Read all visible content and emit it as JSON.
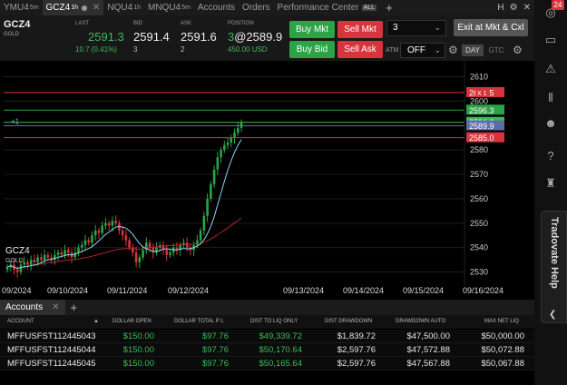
{
  "tabs": [
    {
      "label": "YMU4",
      "sup": "5m",
      "active": false
    },
    {
      "label": "GCZ4",
      "sup": "1h",
      "active": true
    },
    {
      "label": "NQU4",
      "sup": "1h",
      "active": false
    },
    {
      "label": "MNQU4",
      "sup": "5m",
      "active": false
    },
    {
      "label": "Accounts",
      "sup": "",
      "active": false
    },
    {
      "label": "Orders",
      "sup": "",
      "active": false
    },
    {
      "label": "Performance Center",
      "sup": "",
      "active": false
    }
  ],
  "tab_badge": "ALL",
  "window_controls": [
    "H",
    "⚙",
    "✕"
  ],
  "quote": {
    "symbol": "GCZ4",
    "symbol_sub": "GOLD",
    "last_label": "LAST",
    "last": "2591.3",
    "change": "10.7 (0.41%)",
    "bid_label": "BID",
    "bid": "2591.4",
    "bid_size": "3",
    "ask_label": "ASK",
    "ask": "2591.6",
    "ask_size": "2",
    "position_label": "POSITION",
    "position_qty": "3",
    "position_price": "@2589.9",
    "position_pnl": "450.00 USD"
  },
  "order": {
    "buy_mkt": "Buy Mkt",
    "sell_mkt": "Sell Mkt",
    "buy_bid": "Buy Bid",
    "sell_ask": "Sell Ask",
    "quantity": "3",
    "exit_label": "Exit at Mkt & Cxl",
    "atm_label": "ATM",
    "atm_value": "OFF",
    "day_label": "DAY",
    "gtc_label": "GTC"
  },
  "chart_data": {
    "type": "candlestick",
    "symbol": "GCZ4",
    "subtitle": "GOLD",
    "interval": "1h",
    "ylim": [
      2525,
      2615
    ],
    "y_ticks": [
      2530,
      2540,
      2550,
      2560,
      2570,
      2580,
      2590,
      2600,
      2610
    ],
    "x_ticks": [
      "09/2024",
      "09/10/2024",
      "09/11/2024",
      "09/12/2024",
      "09/13/2024",
      "09/14/2024",
      "09/15/2024",
      "09/16/2024"
    ],
    "close_prices": [
      2532,
      2533,
      2531,
      2530,
      2533,
      2534,
      2533,
      2535,
      2534,
      2536,
      2535,
      2537,
      2536,
      2535,
      2537,
      2538,
      2537,
      2539,
      2538,
      2536,
      2538,
      2540,
      2541,
      2543,
      2542,
      2545,
      2547,
      2546,
      2549,
      2550,
      2549,
      2551,
      2550,
      2547,
      2545,
      2543,
      2540,
      2538,
      2534,
      2536,
      2539,
      2542,
      2540,
      2538,
      2540,
      2541,
      2539,
      2537,
      2538,
      2540,
      2539,
      2541,
      2542,
      2540,
      2539,
      2541,
      2543,
      2547,
      2553,
      2560,
      2566,
      2572,
      2577,
      2580,
      2582,
      2583,
      2585,
      2587,
      2589,
      2591.3
    ],
    "order_lines": [
      {
        "price": "2603.5",
        "color": "#d9343e",
        "tag": "X 1"
      },
      {
        "price": "2600",
        "color": "",
        "tag": ""
      },
      {
        "price": "2596.3",
        "color": "#2ca347",
        "tag": ""
      },
      {
        "price": "2591.3",
        "color": "#3dbb5a",
        "tag": ""
      },
      {
        "price": "2589.9",
        "color": "#5c6ea6",
        "tag": "+1"
      },
      {
        "price": "2585.0",
        "color": "#d9343e",
        "tag": ""
      }
    ],
    "position_tag": "+1"
  },
  "accounts": {
    "tab_label": "Accounts",
    "columns": [
      "ACCOUNT",
      "DOLLAR OPEN",
      "DOLLAR TOTAL P L",
      "DIST TO LIQ ONLY",
      "DIST DRAWDOWN",
      "DRAWDOWN AUTO",
      "MAX NET LIQ"
    ],
    "rows": [
      [
        "MFFUSFST112445043",
        "$150.00",
        "$97.76",
        "$49,339.72",
        "$1,839.72",
        "$47,500.00",
        "$50,000.00"
      ],
      [
        "MFFUSFST112445044",
        "$150.00",
        "$97.76",
        "$50,170.64",
        "$2,597.76",
        "$47,572.88",
        "$50,072.88"
      ],
      [
        "MFFUSFST112445045",
        "$150.00",
        "$97.76",
        "$50,165.64",
        "$2,597.76",
        "$47,567.88",
        "$50,067.88"
      ]
    ]
  },
  "sidebar": {
    "notification_count": "24",
    "help_label": "Tradovate Help",
    "icons": [
      "globe-icon",
      "chat-icon",
      "alert-icon",
      "bars-icon",
      "users-icon",
      "help-icon",
      "trophy-icon"
    ]
  }
}
